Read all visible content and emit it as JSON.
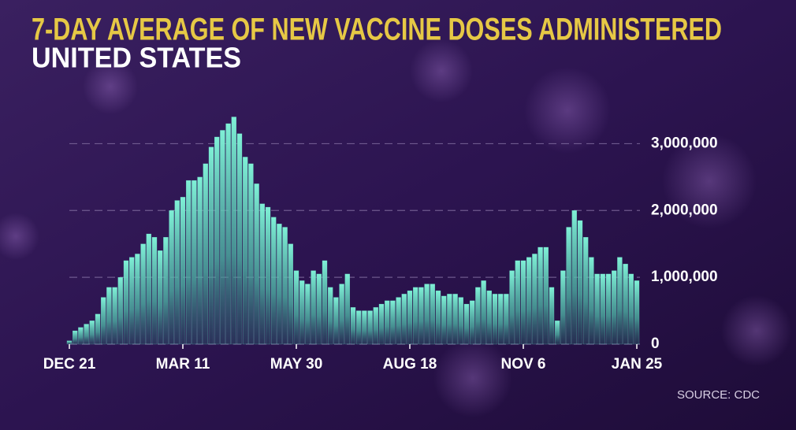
{
  "chart_data": {
    "type": "bar",
    "title": "7-DAY AVERAGE OF NEW VACCINE DOSES ADMINISTERED",
    "subtitle": "UNITED STATES",
    "source": "SOURCE: CDC",
    "color": "#6fe0c8",
    "grid": true,
    "ylim": [
      0,
      3500000
    ],
    "yticks": [
      0,
      {
        "value": 1000000,
        "label": "1,000,000"
      },
      {
        "value": 2000000,
        "label": "2,000,000"
      },
      {
        "value": 3000000,
        "label": "3,000,000"
      }
    ],
    "categories": [
      "DEC 21",
      null,
      null,
      null,
      null,
      null,
      null,
      null,
      null,
      null,
      null,
      null,
      null,
      null,
      null,
      null,
      null,
      null,
      null,
      null,
      "MAR 11",
      null,
      null,
      null,
      null,
      null,
      null,
      null,
      null,
      null,
      null,
      null,
      null,
      null,
      null,
      null,
      null,
      null,
      null,
      null,
      "MAY 30",
      null,
      null,
      null,
      null,
      null,
      null,
      null,
      null,
      null,
      null,
      null,
      null,
      null,
      null,
      null,
      null,
      null,
      null,
      null,
      "AUG 18",
      null,
      null,
      null,
      null,
      null,
      null,
      null,
      null,
      null,
      null,
      null,
      null,
      null,
      null,
      null,
      null,
      null,
      null,
      null,
      "NOV 6",
      null,
      null,
      null,
      null,
      null,
      null,
      null,
      null,
      null,
      null,
      null,
      null,
      null,
      null,
      null,
      null,
      null,
      null,
      null,
      "JAN 25"
    ],
    "values": [
      50000,
      200000,
      250000,
      300000,
      350000,
      450000,
      700000,
      850000,
      850000,
      1000000,
      1250000,
      1300000,
      1350000,
      1500000,
      1650000,
      1600000,
      1400000,
      1600000,
      2000000,
      2150000,
      2200000,
      2450000,
      2450000,
      2500000,
      2700000,
      2950000,
      3100000,
      3200000,
      3300000,
      3400000,
      3150000,
      2800000,
      2700000,
      2400000,
      2100000,
      2050000,
      1900000,
      1800000,
      1750000,
      1500000,
      1100000,
      950000,
      900000,
      1100000,
      1050000,
      1250000,
      850000,
      700000,
      900000,
      1050000,
      550000,
      500000,
      500000,
      500000,
      550000,
      600000,
      650000,
      650000,
      700000,
      750000,
      800000,
      850000,
      850000,
      900000,
      900000,
      800000,
      720000,
      750000,
      750000,
      700000,
      600000,
      650000,
      850000,
      950000,
      800000,
      750000,
      750000,
      750000,
      1100000,
      1250000,
      1250000,
      1300000,
      1350000,
      1450000,
      1450000,
      850000,
      350000,
      1100000,
      1750000,
      2000000,
      1850000,
      1600000,
      1300000,
      1050000,
      1050000,
      1050000,
      1100000,
      1300000,
      1200000,
      1050000,
      950000
    ]
  }
}
